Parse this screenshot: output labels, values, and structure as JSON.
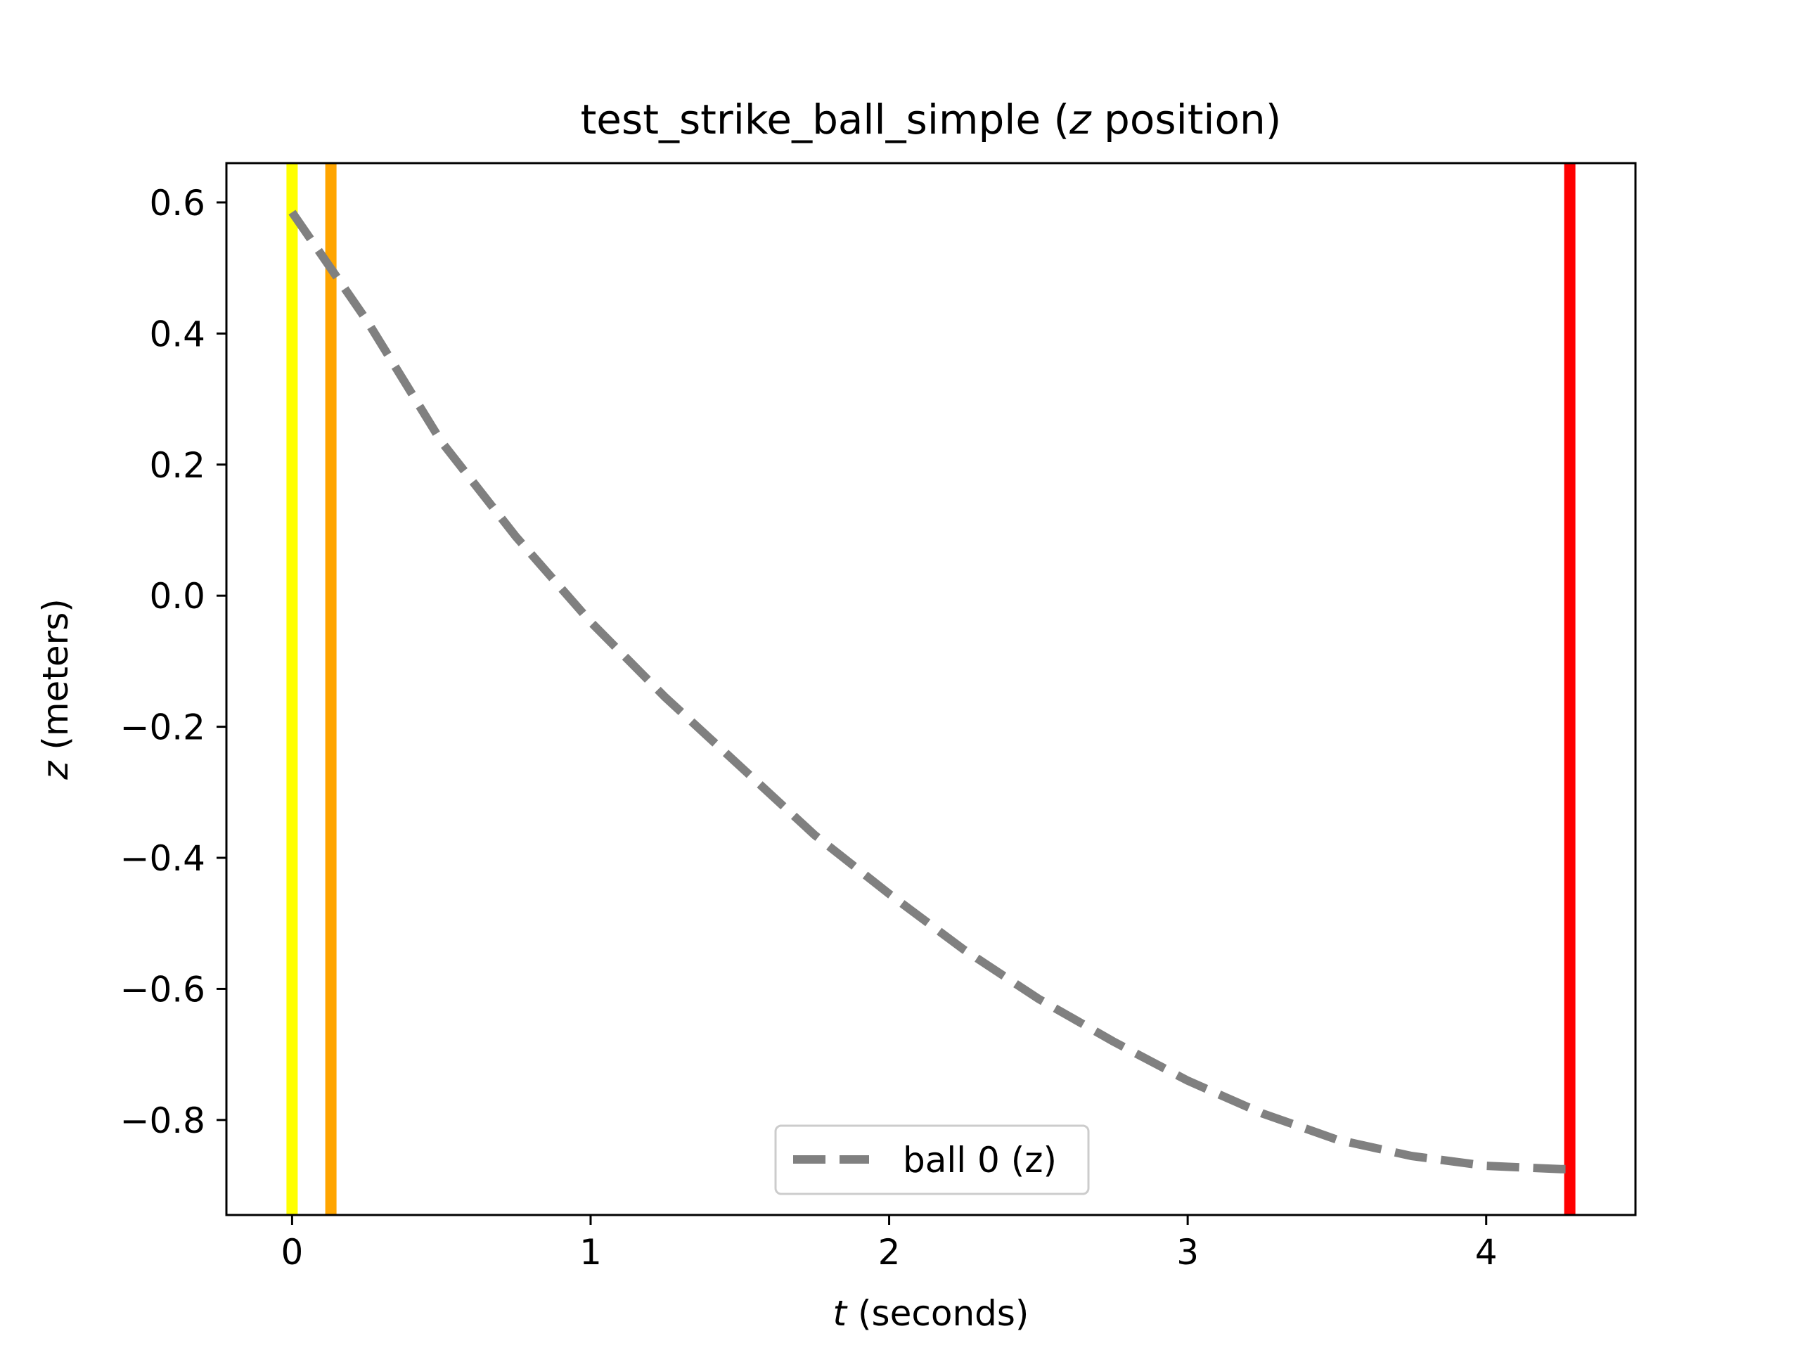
{
  "chart_data": {
    "type": "line",
    "title": {
      "prefix": "test_strike_ball_simple (",
      "var": "z",
      "suffix": " position)"
    },
    "xlabel": {
      "var": "t",
      "rest": " (seconds)"
    },
    "ylabel": {
      "var": "z",
      "rest": " (meters)"
    },
    "xlim": [
      -0.22,
      4.5
    ],
    "ylim": [
      -0.945,
      0.66
    ],
    "xticks": [
      0,
      1,
      2,
      3,
      4
    ],
    "xtick_labels": [
      "0",
      "1",
      "2",
      "3",
      "4"
    ],
    "yticks": [
      -0.8,
      -0.6,
      -0.4,
      -0.2,
      0.0,
      0.2,
      0.4,
      0.6
    ],
    "ytick_labels": [
      "−0.8",
      "−0.6",
      "−0.4",
      "−0.2",
      "0.0",
      "0.2",
      "0.4",
      "0.6"
    ],
    "grid": false,
    "legend_position": "lower center",
    "series": [
      {
        "name": "ball 0 (z)",
        "color": "#808080",
        "style": "dashed",
        "x": [
          0.0,
          0.25,
          0.5,
          0.75,
          1.0,
          1.25,
          1.5,
          1.75,
          2.0,
          2.25,
          2.5,
          2.75,
          3.0,
          3.25,
          3.5,
          3.75,
          4.0,
          4.25,
          4.28
        ],
        "y": [
          0.585,
          0.42,
          0.235,
          0.09,
          -0.04,
          -0.155,
          -0.26,
          -0.365,
          -0.455,
          -0.54,
          -0.615,
          -0.68,
          -0.74,
          -0.79,
          -0.83,
          -0.855,
          -0.87,
          -0.875,
          -0.875
        ]
      }
    ],
    "vertical_lines": [
      {
        "x": 0.0,
        "color": "#ffff00"
      },
      {
        "x": 0.13,
        "color": "#ffa500"
      },
      {
        "x": 4.28,
        "color": "#ff0000"
      }
    ]
  }
}
